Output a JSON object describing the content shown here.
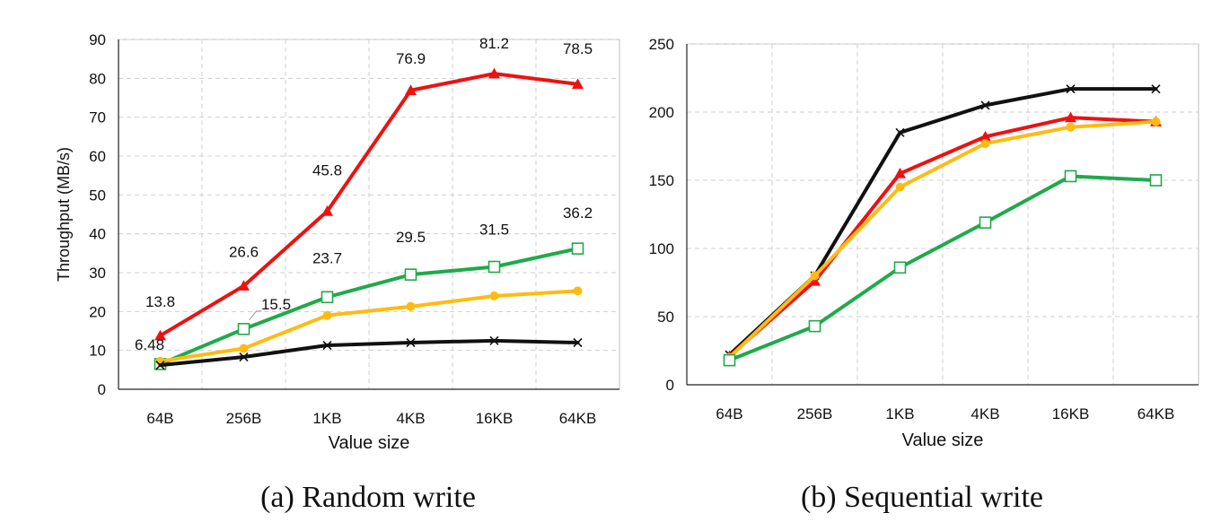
{
  "chart_data": [
    {
      "type": "line",
      "caption": "(a)  Random write",
      "categories": [
        "64B",
        "256B",
        "1KB",
        "4KB",
        "16KB",
        "64KB"
      ],
      "xlabel": "Value size",
      "ylabel": "Throughput (MB/s)",
      "ylim": [
        0,
        90
      ],
      "yticks": [
        0,
        10,
        20,
        30,
        40,
        50,
        60,
        70,
        80,
        90
      ],
      "grid": true,
      "series": [
        {
          "color": "#ee1111",
          "marker": "triangle",
          "values": [
            13.8,
            26.6,
            45.8,
            76.9,
            81.2,
            78.5
          ]
        },
        {
          "color": "#1faa4a",
          "marker": "square-open",
          "values": [
            6.48,
            15.5,
            23.7,
            29.5,
            31.5,
            36.2
          ]
        },
        {
          "color": "#ffbb11",
          "marker": "circle",
          "values": [
            7.2,
            10.5,
            19.0,
            21.3,
            24.0,
            25.3
          ]
        },
        {
          "color": "#111111",
          "marker": "x",
          "values": [
            6.2,
            8.3,
            11.3,
            12.0,
            12.5,
            12.0
          ]
        }
      ],
      "data_labels": [
        {
          "text": "13.8",
          "series": 0,
          "index": 0,
          "dx": 0,
          "dy": -32
        },
        {
          "text": "26.6",
          "series": 0,
          "index": 1,
          "dx": 0,
          "dy": -32
        },
        {
          "text": "45.8",
          "series": 0,
          "index": 2,
          "dx": 0,
          "dy": -40
        },
        {
          "text": "76.9",
          "series": 0,
          "index": 3,
          "dx": 0,
          "dy": -30
        },
        {
          "text": "81.2",
          "series": 0,
          "index": 4,
          "dx": 0,
          "dy": -28
        },
        {
          "text": "78.5",
          "series": 0,
          "index": 5,
          "dx": 0,
          "dy": -34
        },
        {
          "text": "6.48",
          "series": 1,
          "index": 0,
          "dx": -12,
          "dy": -16
        },
        {
          "text": "15.5",
          "series": 1,
          "index": 1,
          "dx": 36,
          "dy": -22
        },
        {
          "text": "23.7",
          "series": 1,
          "index": 2,
          "dx": 0,
          "dy": -38
        },
        {
          "text": "29.5",
          "series": 1,
          "index": 3,
          "dx": 0,
          "dy": -36
        },
        {
          "text": "31.5",
          "series": 1,
          "index": 4,
          "dx": 0,
          "dy": -36
        },
        {
          "text": "36.2",
          "series": 1,
          "index": 5,
          "dx": 0,
          "dy": -34
        }
      ]
    },
    {
      "type": "line",
      "caption": "(b)  Sequential write",
      "categories": [
        "64B",
        "256B",
        "1KB",
        "4KB",
        "16KB",
        "64KB"
      ],
      "xlabel": "Value size",
      "ylabel": "",
      "ylim": [
        0,
        250
      ],
      "yticks": [
        0,
        50,
        100,
        150,
        200,
        250
      ],
      "grid": true,
      "series": [
        {
          "color": "#111111",
          "marker": "x",
          "values": [
            22,
            80,
            185,
            205,
            217,
            217
          ]
        },
        {
          "color": "#ee1111",
          "marker": "triangle",
          "values": [
            21,
            76,
            155,
            182,
            196,
            193
          ]
        },
        {
          "color": "#ffbb11",
          "marker": "circle",
          "values": [
            20,
            80,
            145,
            177,
            189,
            193
          ]
        },
        {
          "color": "#1faa4a",
          "marker": "square-open",
          "values": [
            18,
            43,
            86,
            119,
            153,
            150
          ]
        }
      ],
      "data_labels": []
    }
  ]
}
